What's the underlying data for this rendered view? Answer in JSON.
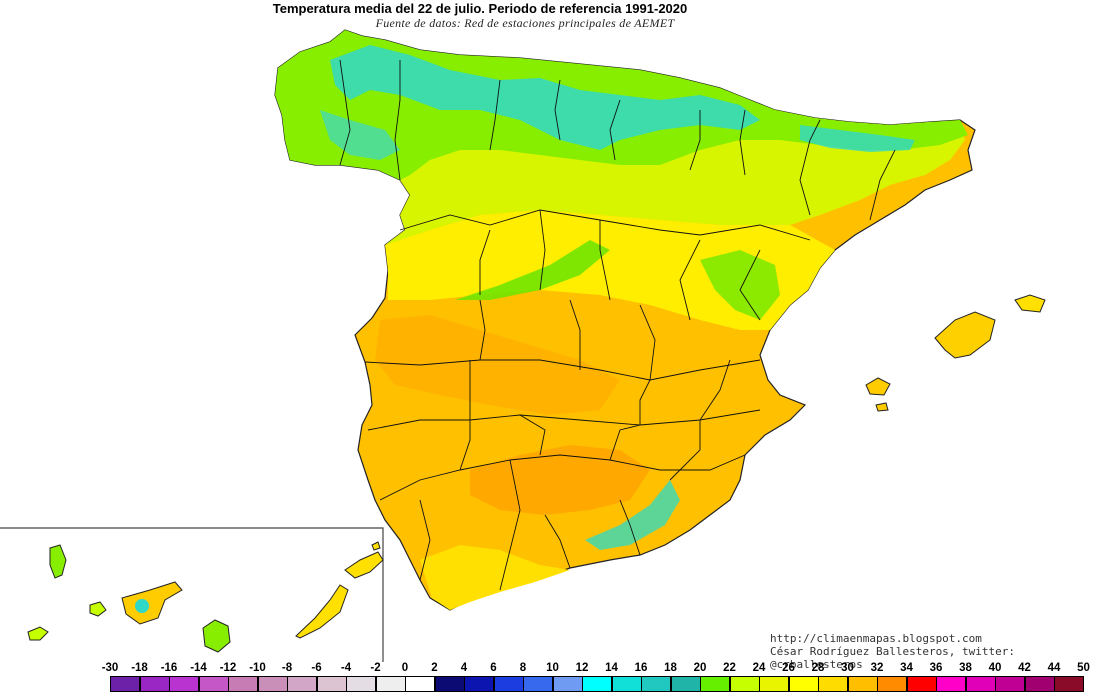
{
  "map": {
    "title": "Temperatura media del 22 de julio. Periodo de referencia 1991-2020",
    "subtitle": "Fuente de datos: Red de estaciones principales de AEMET",
    "credit_url": "http://climaenmapas.blogspot.com",
    "credit_author": "César Rodríguez Ballesteros, twitter: @crballesteros"
  },
  "legend": {
    "labels": [
      "-30",
      "-18",
      "-16",
      "-14",
      "-12",
      "-10",
      "-8",
      "-6",
      "-4",
      "-2",
      "0",
      "2",
      "4",
      "6",
      "8",
      "10",
      "12",
      "14",
      "16",
      "18",
      "20",
      "22",
      "24",
      "26",
      "28",
      "30",
      "32",
      "34",
      "36",
      "38",
      "40",
      "42",
      "44",
      "50"
    ],
    "colors": [
      "#6d21a8",
      "#9a27c4",
      "#b833d0",
      "#c557c7",
      "#c77db4",
      "#c98fb9",
      "#d1a6c6",
      "#dcc4d3",
      "#e4dde4",
      "#eeeeee",
      "#ffffff",
      "#0b0b73",
      "#0d15b0",
      "#1c3ee0",
      "#3769ee",
      "#6f9cf2",
      "#00ffff",
      "#10e0d8",
      "#20c8c0",
      "#20b3a8",
      "#66f000",
      "#c6ff00",
      "#e8f400",
      "#ffff00",
      "#ffdc00",
      "#ffbe00",
      "#ff8c00",
      "#ff0000",
      "#ff00c8",
      "#e000b8",
      "#c00095",
      "#a00070",
      "#8a0a2a"
    ]
  }
}
